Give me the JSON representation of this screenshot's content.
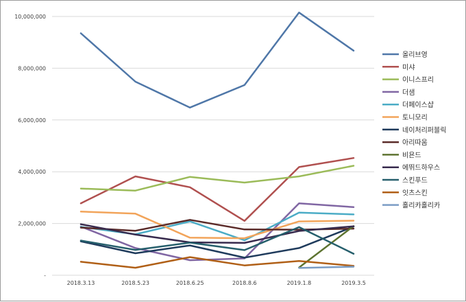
{
  "chart_data": {
    "type": "line",
    "categories": [
      "2018.3.13",
      "2018.5.23",
      "2018.6.25",
      "2018.8.6",
      "2019.1.8",
      "2019.3.5"
    ],
    "ylim": [
      0,
      10000000
    ],
    "y_ticks": [
      "-",
      "2,000,000",
      "4,000,000",
      "6,000,000",
      "8,000,000",
      "10,000,000"
    ],
    "y_tick_values": [
      0,
      2000000,
      4000000,
      6000000,
      8000000,
      10000000
    ],
    "grid": true,
    "legend_position": "right",
    "series": [
      {
        "name": "올리브영",
        "color": "#4f77a8",
        "values": [
          9350000,
          7480000,
          6480000,
          7350000,
          10150000,
          8680000
        ]
      },
      {
        "name": "미샤",
        "color": "#b0504f",
        "values": [
          2780000,
          3820000,
          3400000,
          2100000,
          4180000,
          4530000
        ]
      },
      {
        "name": "이니스프리",
        "color": "#9bbb59",
        "values": [
          3350000,
          3270000,
          3800000,
          3580000,
          3820000,
          4230000
        ]
      },
      {
        "name": "더샘",
        "color": "#8066a3",
        "values": [
          1880000,
          1050000,
          580000,
          650000,
          2780000,
          2630000
        ]
      },
      {
        "name": "더페이스샵",
        "color": "#4bacc6",
        "values": [
          1870000,
          1580000,
          2080000,
          1350000,
          2420000,
          2350000
        ]
      },
      {
        "name": "토니모리",
        "color": "#f2a45a",
        "values": [
          2460000,
          2380000,
          1450000,
          1430000,
          2080000,
          2110000
        ]
      },
      {
        "name": "네이처리퍼블릭",
        "color": "#1f3b5c",
        "values": [
          1310000,
          850000,
          1150000,
          680000,
          1050000,
          1880000
        ]
      },
      {
        "name": "아리따움",
        "color": "#5a2a28",
        "values": [
          1840000,
          1720000,
          2140000,
          1770000,
          1760000,
          1800000
        ]
      },
      {
        "name": "비욘드",
        "color": "#5d7330",
        "values": [
          null,
          null,
          null,
          null,
          300000,
          1900000
        ]
      },
      {
        "name": "에뛰드하우스",
        "color": "#372a4d",
        "values": [
          1970000,
          1570000,
          1270000,
          1250000,
          1710000,
          1890000
        ]
      },
      {
        "name": "스킨푸드",
        "color": "#265f6c",
        "values": [
          1340000,
          980000,
          1260000,
          970000,
          1860000,
          830000
        ]
      },
      {
        "name": "잇츠스킨",
        "color": "#b05f16",
        "values": [
          520000,
          290000,
          700000,
          380000,
          550000,
          360000
        ]
      },
      {
        "name": "홀리카홀리카",
        "color": "#7a9cc4",
        "values": [
          null,
          null,
          null,
          null,
          280000,
          330000
        ]
      }
    ]
  }
}
